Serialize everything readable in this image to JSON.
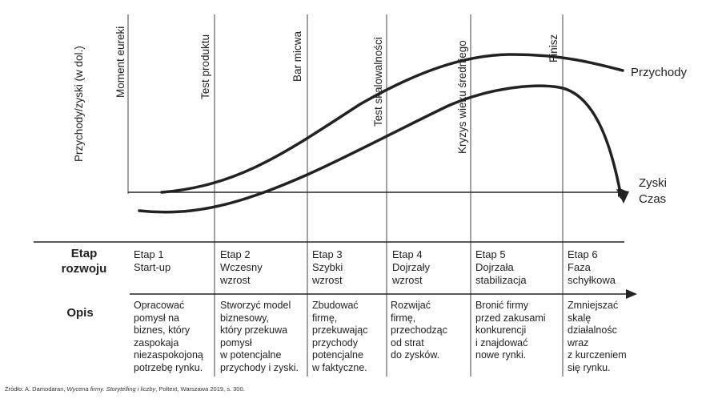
{
  "chart_data": {
    "type": "line",
    "ylabel": "Przychody/zyski (w dol.)",
    "xlabel": "Czas",
    "series": [
      {
        "name": "Przychody"
      },
      {
        "name": "Zyski"
      }
    ],
    "phase_markers": [
      "Moment eureki",
      "Test produktu",
      "Bar micwa",
      "Test skalowalności",
      "Kryzys wieku średniego",
      "Finisz"
    ]
  },
  "row_headers": {
    "stage": [
      "Etap",
      "rozwoju"
    ],
    "description": "Opis"
  },
  "stages": [
    {
      "title": "Etap 1",
      "name": [
        "Start-up"
      ]
    },
    {
      "title": "Etap 2",
      "name": [
        "Wczesny",
        "wzrost"
      ]
    },
    {
      "title": "Etap 3",
      "name": [
        "Szybki",
        "wzrost"
      ]
    },
    {
      "title": "Etap 4",
      "name": [
        "Dojrzały",
        "wzrost"
      ]
    },
    {
      "title": "Etap 5",
      "name": [
        "Dojrzała",
        "stabilizacja"
      ]
    },
    {
      "title": "Etap 6",
      "name": [
        "Faza",
        "schyłkowa"
      ]
    }
  ],
  "descriptions": [
    [
      "Opracować",
      "pomysł na",
      "biznes, który",
      "zaspokaja",
      "niezaspokojoną",
      "potrzebę rynku."
    ],
    [
      "Stworzyć model",
      "biznesowy,",
      "który przekuwa",
      "pomysł",
      "w potencjalne",
      "przychody i zyski."
    ],
    [
      "Zbudować",
      "firmę,",
      "przekuwając",
      "przychody",
      "potencjalne",
      "w faktyczne."
    ],
    [
      "Rozwijać",
      "firmę,",
      "przechodząc",
      "od strat",
      "do zysków."
    ],
    [
      "Bronić firmy",
      "przed zakusami",
      "konkurencji",
      "i znajdować",
      "nowe rynki."
    ],
    [
      "Zmniejszać",
      "skalę",
      "działalnośc",
      "wraz",
      "z kurczeniem",
      "się rynku."
    ]
  ],
  "source": {
    "prefix": "Źródło: A. Damodaran, ",
    "title": "Wycena firmy. Storytelling i liczby",
    "suffix": ", Poltext, Warszawa 2019, s. 300."
  }
}
